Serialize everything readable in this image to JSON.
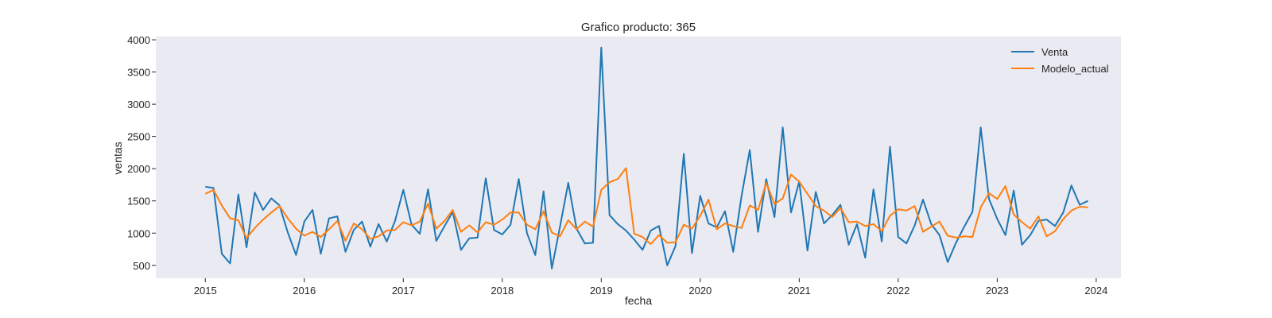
{
  "chart_data": {
    "type": "line",
    "title": "Grafico producto: 365",
    "xlabel": "fecha",
    "ylabel": "ventas",
    "x_start": "2015-01",
    "x_frequency": "monthly",
    "xlim": [
      "2014-07",
      "2024-04"
    ],
    "ylim": [
      300,
      4050
    ],
    "xticks": [
      "2015",
      "2016",
      "2017",
      "2018",
      "2019",
      "2020",
      "2021",
      "2022",
      "2023",
      "2024"
    ],
    "yticks": [
      500,
      1000,
      1500,
      2000,
      2500,
      3000,
      3500,
      4000
    ],
    "grid": false,
    "legend_position": "upper right",
    "background_color": "#eaeaf2",
    "series": [
      {
        "name": "Venta",
        "color": "#1f77b4",
        "values": [
          1720,
          1700,
          680,
          530,
          1600,
          780,
          1630,
          1360,
          1540,
          1430,
          1010,
          660,
          1180,
          1360,
          680,
          1230,
          1260,
          710,
          1050,
          1180,
          790,
          1140,
          870,
          1190,
          1670,
          1130,
          990,
          1680,
          880,
          1110,
          1330,
          740,
          920,
          930,
          1850,
          1050,
          980,
          1130,
          1840,
          1000,
          660,
          1650,
          450,
          1100,
          1780,
          1070,
          840,
          850,
          3880,
          1280,
          1140,
          1040,
          900,
          740,
          1040,
          1110,
          500,
          800,
          2230,
          690,
          1580,
          1150,
          1090,
          1340,
          710,
          1570,
          2290,
          1020,
          1840,
          1250,
          2640,
          1320,
          1800,
          730,
          1640,
          1150,
          1280,
          1440,
          820,
          1140,
          620,
          1680,
          870,
          2340,
          940,
          840,
          1120,
          1520,
          1140,
          970,
          550,
          850,
          1100,
          1330,
          2640,
          1530,
          1220,
          970,
          1660,
          820,
          970,
          1190,
          1210,
          1110,
          1320,
          1740,
          1440,
          1500
        ]
      },
      {
        "name": "Modelo_actual",
        "color": "#ff7f0e",
        "values": [
          1610,
          1670,
          1430,
          1230,
          1200,
          920,
          1080,
          1210,
          1320,
          1420,
          1230,
          1070,
          960,
          1020,
          940,
          1060,
          1190,
          880,
          1150,
          1060,
          910,
          950,
          1040,
          1050,
          1170,
          1120,
          1180,
          1460,
          1070,
          1190,
          1360,
          1020,
          1120,
          1010,
          1170,
          1130,
          1210,
          1320,
          1320,
          1130,
          1060,
          1340,
          1010,
          950,
          1200,
          1060,
          1180,
          1100,
          1670,
          1790,
          1840,
          2010,
          990,
          940,
          830,
          970,
          850,
          860,
          1130,
          1070,
          1270,
          1520,
          1060,
          1150,
          1110,
          1080,
          1430,
          1360,
          1780,
          1450,
          1540,
          1910,
          1800,
          1610,
          1420,
          1350,
          1250,
          1390,
          1170,
          1180,
          1110,
          1140,
          1030,
          1270,
          1370,
          1350,
          1420,
          1020,
          1100,
          1180,
          960,
          930,
          950,
          940,
          1400,
          1620,
          1530,
          1730,
          1290,
          1170,
          1070,
          1260,
          950,
          1030,
          1220,
          1350,
          1410,
          1400
        ]
      }
    ]
  }
}
